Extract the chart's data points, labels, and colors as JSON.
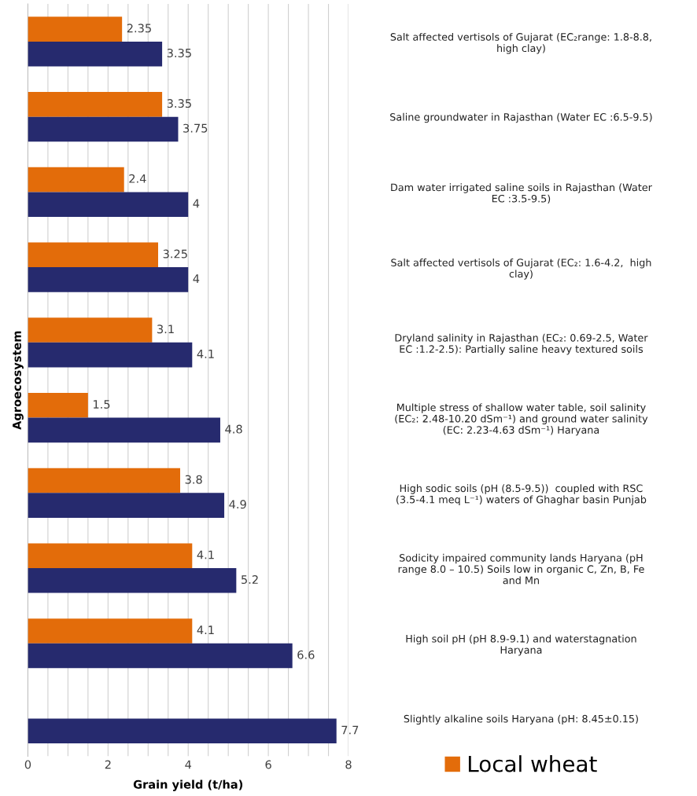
{
  "chart_data": {
    "type": "bar",
    "orientation": "horizontal",
    "categories": [
      "Salt affected vertisols of Gujarat (EC₂range: 1.8-8.8,\nhigh clay)",
      "Saline groundwater in Rajasthan (Water EC :6.5-9.5)",
      "Dam water irrigated saline soils in Rajasthan (Water\nEC :3.5-9.5)",
      "Salt affected vertisols of Gujarat (EC₂: 1.6-4.2,  high\nclay)",
      "Dryland salinity in Rajasthan (EC₂: 0.69-2.5, Water\nEC :1.2-2.5): Partially saline heavy textured soils",
      "Multiple stress of shallow water table, soil salinity\n(EC₂: 2.48-10.20 dSm⁻¹) and ground water salinity\n(EC: 2.23-4.63 dSm⁻¹) Haryana",
      "High sodic soils (pH (8.5-9.5))  coupled with RSC\n(3.5-4.1 meq L⁻¹) waters of Ghaghar basin Punjab",
      "Sodicity impaired community lands Haryana (pH\nrange 8.0 – 10.5) Soils low in organic C, Zn, B, Fe\nand Mn",
      "High soil pH (pH 8.9-9.1) and waterstagnation\nHaryana",
      "Slightly alkaline soils Haryana (pH: 8.45±0.15)"
    ],
    "series": [
      {
        "name": "Local wheat",
        "color": "#e36c0a",
        "values": [
          2.35,
          3.35,
          2.4,
          3.25,
          3.1,
          1.5,
          3.8,
          4.1,
          4.1,
          null
        ]
      },
      {
        "color": "#262a6e",
        "values": [
          3.35,
          3.75,
          4,
          4,
          4.1,
          4.8,
          4.9,
          5.2,
          6.6,
          7.7
        ]
      }
    ],
    "xlabel": "Grain yield (t/ha)",
    "ylabel": "Agroecosystem",
    "xlim": [
      0,
      8
    ],
    "xticks": [
      0,
      {
        "value": 0.5,
        "label": null
      },
      2,
      {
        "value": 1,
        "label": null
      },
      {
        "value": 1.5,
        "label": null
      },
      {
        "value": 2.5,
        "label": null
      },
      {
        "value": 3,
        "label": null
      },
      {
        "value": 3.5,
        "label": null
      },
      4,
      {
        "value": 4.5,
        "label": null
      },
      {
        "value": 5,
        "label": null
      },
      {
        "value": 5.5,
        "label": null
      },
      6,
      {
        "value": 6.5,
        "label": null
      },
      {
        "value": 7,
        "label": null
      },
      {
        "value": 7.5,
        "label": null
      },
      8
    ],
    "grid": "x",
    "legend": "bottom right",
    "data_labels": true
  }
}
